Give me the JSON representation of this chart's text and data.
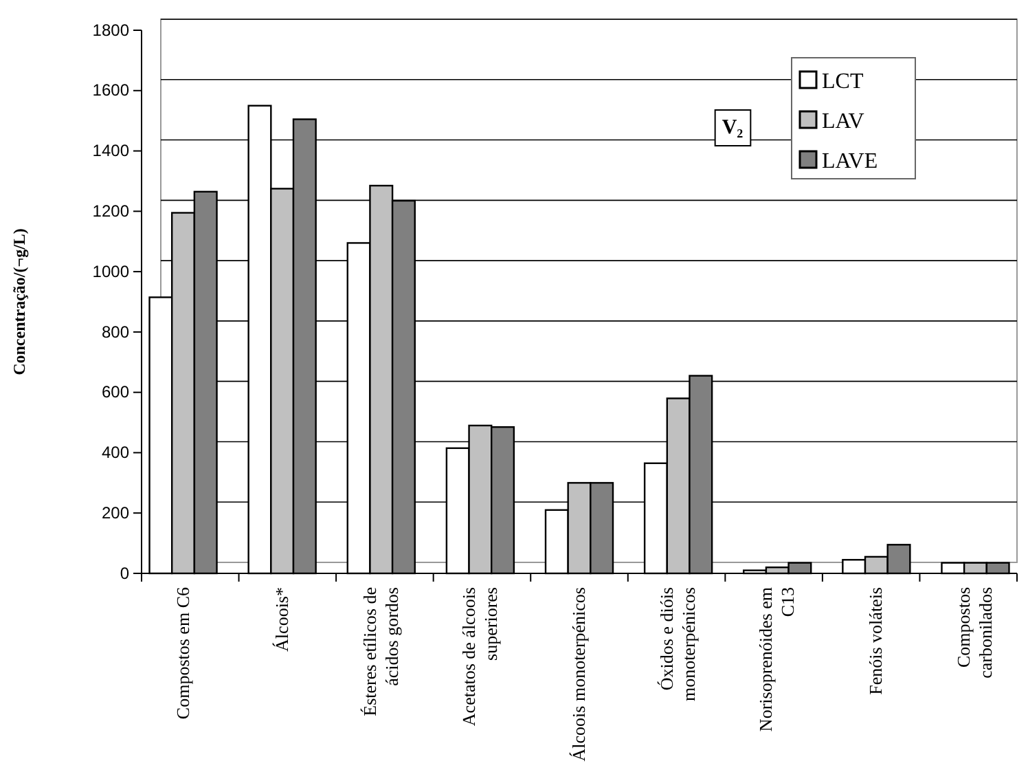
{
  "chart_data": {
    "type": "bar",
    "ylabel": "Concentração/(¬g/L)",
    "categories": [
      "Compostos em C6",
      "Álcoois*",
      "Ésteres etílicos de ácidos gordos",
      "Acetatos de álcoois superiores",
      "Álcoois monoterpénicos",
      "Óxidos e dióis monoterpénicos",
      "Norisoprenóides em C13",
      "Fenóis voláteis",
      "Compostos carbonilados"
    ],
    "series": [
      {
        "name": "LCT",
        "color": "#ffffff",
        "values": [
          915,
          1550,
          1095,
          415,
          210,
          365,
          10,
          45,
          35
        ]
      },
      {
        "name": "LAV",
        "color": "#c0c0c0",
        "values": [
          1195,
          1275,
          1285,
          490,
          300,
          580,
          20,
          55,
          35
        ]
      },
      {
        "name": "LAVE",
        "color": "#808080",
        "values": [
          1265,
          1505,
          1235,
          485,
          300,
          655,
          35,
          95,
          35
        ]
      }
    ],
    "ylim": [
      0,
      1800
    ],
    "yticks": [
      0,
      200,
      400,
      600,
      800,
      1000,
      1200,
      1400,
      1600,
      1800
    ],
    "grid": "y",
    "legend": "top right",
    "annotations": [
      "V₂"
    ]
  }
}
